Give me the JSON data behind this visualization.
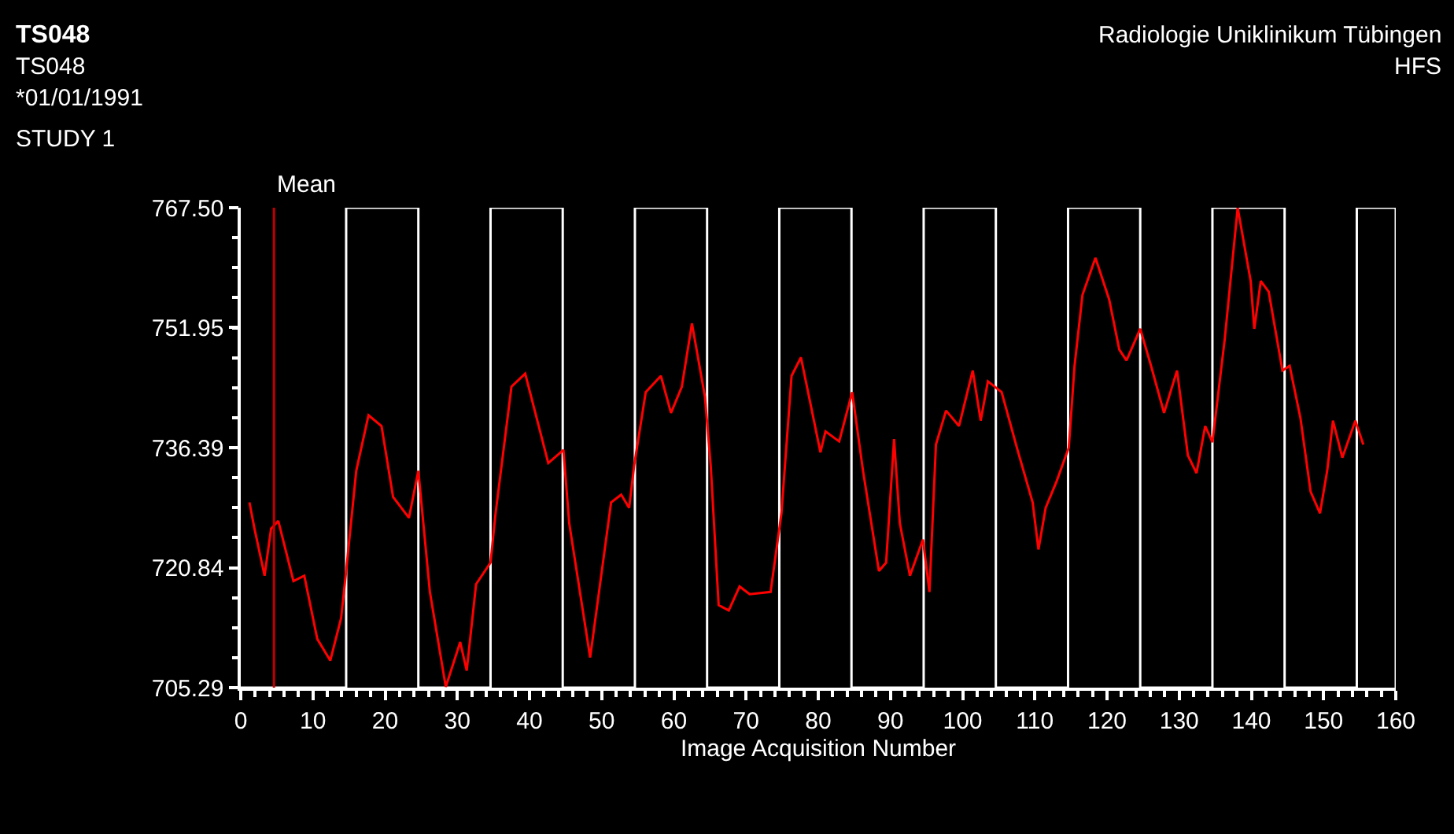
{
  "chart_data": {
    "type": "line",
    "title": "TS048",
    "xlabel": "Image Acquisition Number",
    "annotations": [
      "TS048",
      "*01/01/1991",
      "STUDY 1",
      "Radiologie Uniklinikum Tübingen",
      "HFS"
    ],
    "xlim": [
      0,
      160
    ],
    "xticks": [
      0,
      10,
      20,
      30,
      40,
      50,
      60,
      70,
      80,
      90,
      100,
      110,
      120,
      130,
      140,
      150,
      160
    ],
    "ylim": [
      705.29,
      767.5
    ],
    "yticks": [
      {
        "value": 705.29,
        "label": "705.29"
      },
      {
        "value": 720.84,
        "label": "720.84"
      },
      {
        "value": 736.39,
        "label": "736.39"
      },
      {
        "value": 751.95,
        "label": "751.95"
      },
      {
        "value": 767.5,
        "label": "767.50"
      }
    ],
    "grid": false,
    "marker": "none",
    "line_style": "solid",
    "ref_lines": [
      {
        "axis": "x",
        "value": 4.6,
        "label": "Mean",
        "color": "#c00000"
      }
    ],
    "series": [
      {
        "color": "#ffffff",
        "x": [
          0,
          14.6,
          14.6,
          24.6,
          24.6,
          34.6,
          34.6,
          44.6,
          44.6,
          54.6,
          54.6,
          64.6,
          64.6,
          74.6,
          74.6,
          84.6,
          84.6,
          94.6,
          94.6,
          104.6,
          104.6,
          114.6,
          114.6,
          124.6,
          124.6,
          134.6,
          134.6,
          144.6,
          144.6,
          154.6,
          154.6,
          160,
          160
        ],
        "values": [
          705.29,
          705.29,
          767.5,
          767.5,
          705.29,
          705.29,
          767.5,
          767.5,
          705.29,
          705.29,
          767.5,
          767.5,
          705.29,
          705.29,
          767.5,
          767.5,
          705.29,
          705.29,
          767.5,
          767.5,
          705.29,
          705.29,
          767.5,
          767.5,
          705.29,
          705.29,
          767.5,
          767.5,
          705.29,
          705.29,
          767.5,
          767.5,
          705.29
        ]
      },
      {
        "color": "#ff0000",
        "x": [
          1.2,
          1.9,
          3.3,
          4.2,
          5.2,
          7.3,
          8.8,
          10.6,
          12.4,
          13.9,
          14.6,
          16.0,
          17.7,
          19.5,
          21.1,
          23.3,
          24.6,
          26.2,
          28.4,
          30.4,
          31.3,
          32.6,
          34.6,
          35.3,
          37.5,
          39.4,
          42.6,
          44.7,
          45.5,
          48.4,
          51.3,
          52.7,
          53.8,
          54.5,
          56.1,
          58.2,
          59.6,
          61.1,
          62.5,
          64.3,
          65.1,
          66.2,
          67.6,
          69.1,
          70.5,
          73.4,
          74.9,
          76.3,
          77.6,
          80.3,
          81.0,
          82.9,
          84.7,
          86.2,
          88.4,
          89.4,
          90.5,
          91.3,
          92.7,
          94.5,
          95.4,
          96.3,
          97.7,
          99.5,
          101.4,
          102.5,
          103.5,
          105.4,
          107.6,
          109.7,
          110.5,
          111.5,
          113.0,
          114.7,
          115.5,
          116.6,
          118.4,
          120.3,
          121.7,
          122.7,
          124.6,
          126.1,
          127.9,
          129.7,
          131.2,
          132.4,
          133.6,
          134.6,
          136.3,
          138.1,
          139.9,
          140.4,
          141.3,
          142.4,
          144.3,
          145.3,
          146.8,
          148.2,
          149.5,
          150.5,
          151.3,
          152.6,
          154.4,
          155.5
        ],
        "values": [
          729.3,
          725.9,
          719.8,
          725.9,
          726.9,
          719.1,
          719.8,
          711.6,
          708.8,
          714.3,
          720.4,
          733.4,
          740.6,
          739.2,
          730.0,
          727.3,
          733.4,
          717.7,
          705.4,
          711.2,
          707.5,
          718.7,
          721.5,
          727.9,
          744.3,
          746.0,
          734.4,
          736.1,
          726.6,
          709.2,
          729.3,
          730.3,
          728.6,
          734.1,
          743.6,
          745.7,
          740.9,
          744.3,
          752.5,
          743.0,
          734.1,
          716.0,
          715.3,
          718.4,
          717.4,
          717.7,
          727.9,
          745.7,
          748.1,
          735.8,
          738.5,
          737.2,
          743.6,
          733.4,
          720.4,
          721.5,
          737.5,
          726.6,
          719.8,
          724.5,
          717.7,
          736.8,
          741.2,
          739.2,
          746.4,
          739.9,
          745.0,
          743.6,
          736.1,
          729.3,
          723.2,
          728.6,
          732.0,
          736.4,
          747.0,
          756.2,
          761.0,
          755.6,
          749.1,
          747.7,
          751.8,
          747.0,
          740.9,
          746.4,
          735.4,
          733.1,
          739.2,
          737.1,
          750.4,
          767.5,
          758.0,
          751.8,
          758.0,
          756.6,
          746.4,
          747.0,
          740.2,
          730.7,
          727.9,
          733.4,
          739.9,
          735.1,
          739.9,
          736.8
        ]
      }
    ]
  }
}
